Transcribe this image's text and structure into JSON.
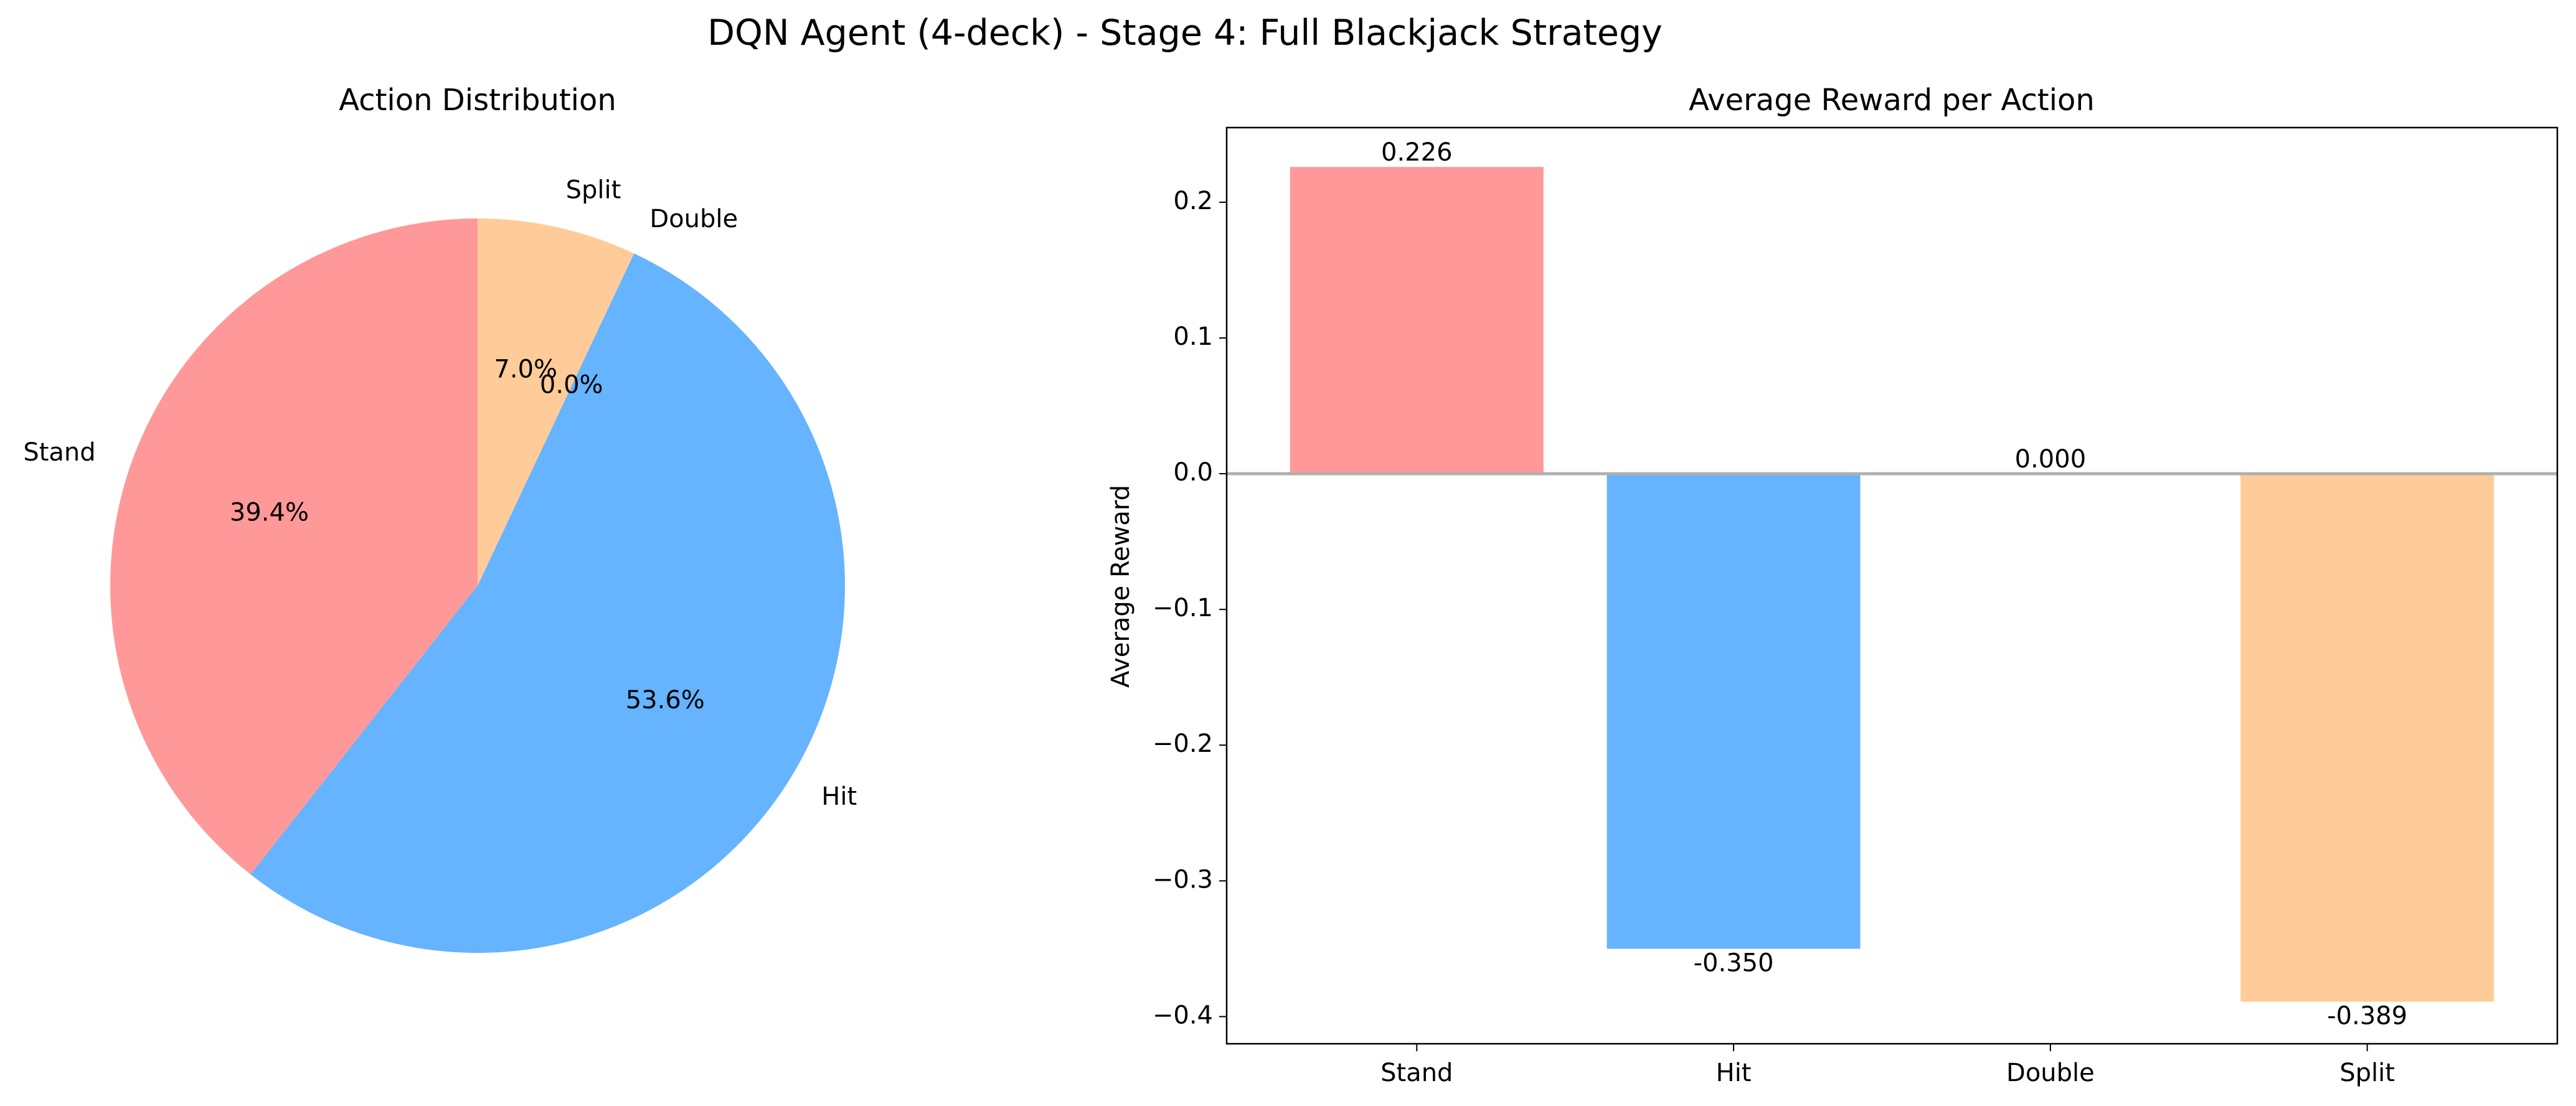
{
  "figure": {
    "title": "DQN Agent (4-deck) - Stage 4: Full Blackjack Strategy"
  },
  "colors": {
    "stand": "#ff9999",
    "hit": "#66b3ff",
    "double": "#99ff99",
    "split": "#ffcc99",
    "axis": "#000000",
    "zero_line": "#b0b0b0"
  },
  "chart_data": [
    {
      "type": "pie",
      "title": "Action Distribution",
      "categories": [
        "Stand",
        "Hit",
        "Double",
        "Split"
      ],
      "values": [
        39.4,
        53.6,
        0.0,
        7.0
      ],
      "value_labels": [
        "39.4%",
        "53.6%",
        "0.0%",
        "7.0%"
      ],
      "start_angle_deg": 90,
      "direction": "counterclockwise"
    },
    {
      "type": "bar",
      "title": "Average Reward per Action",
      "categories": [
        "Stand",
        "Hit",
        "Double",
        "Split"
      ],
      "values": [
        0.226,
        -0.35,
        0.0,
        -0.389
      ],
      "value_labels": [
        "0.226",
        "-0.350",
        "0.000",
        "-0.389"
      ],
      "xlabel": "",
      "ylabel": "Average Reward",
      "ylim": [
        -0.42,
        0.255
      ],
      "yticks": [
        -0.4,
        -0.3,
        -0.2,
        -0.1,
        0.0,
        0.1,
        0.2
      ],
      "ytick_labels": [
        "−0.4",
        "−0.3",
        "−0.2",
        "−0.1",
        "0.0",
        "0.1",
        "0.2"
      ],
      "zero_line": true,
      "grid": false,
      "legend": "none"
    }
  ]
}
